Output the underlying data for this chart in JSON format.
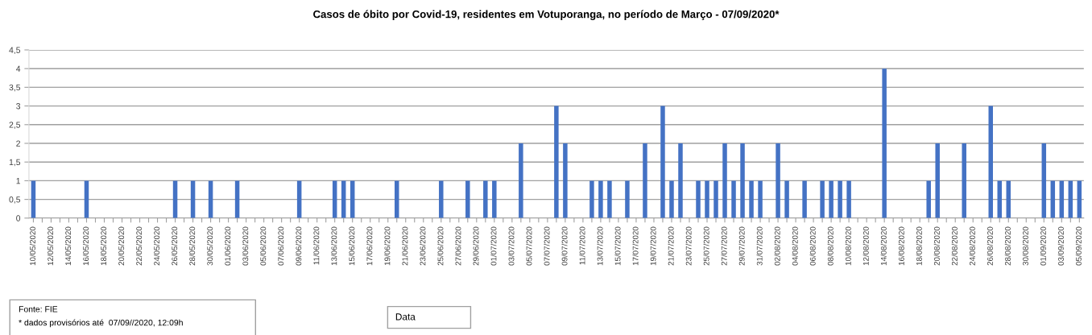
{
  "chart_data": {
    "type": "bar",
    "title": "Casos de óbito por Covid-19, residentes em Votuporanga, no período de Março - 07/09/2020*",
    "annotations": [
      "Fonte: FIE",
      "* dados provisórios até  07/09//2020, 12:09h",
      "Data"
    ],
    "categories": [
      "10/05/2020",
      null,
      "12/05/2020",
      null,
      "14/05/2020",
      null,
      "16/05/2020",
      null,
      "18/05/2020",
      null,
      "20/05/2020",
      null,
      "22/05/2020",
      null,
      "24/05/2020",
      null,
      "26/05/2020",
      null,
      "28/05/2020",
      null,
      "30/05/2020",
      null,
      "01/06/2020",
      null,
      "03/06/2020",
      null,
      "05/06/2020",
      null,
      "07/06/2020",
      null,
      "09/06/2020",
      null,
      "11/06/2020",
      null,
      "13/06/2020",
      null,
      "15/06/2020",
      null,
      "17/06/2020",
      null,
      "19/06/2020",
      null,
      "21/06/2020",
      null,
      "23/06/2020",
      null,
      "25/06/2020",
      null,
      "27/06/2020",
      null,
      "29/06/2020",
      null,
      "01/07/2020",
      null,
      "03/07/2020",
      null,
      "05/07/2020",
      null,
      "07/07/2020",
      null,
      "09/07/2020",
      null,
      "11/07/2020",
      null,
      "13/07/2020",
      null,
      "15/07/2020",
      null,
      "17/07/2020",
      null,
      "19/07/2020",
      null,
      "21/07/2020",
      null,
      "23/07/2020",
      null,
      "25/07/2020",
      null,
      "27/07/2020",
      null,
      "29/07/2020",
      null,
      "31/07/2020",
      null,
      "02/08/2020",
      null,
      "04/08/2020",
      null,
      "06/08/2020",
      null,
      "08/08/2020",
      null,
      "10/08/2020",
      null,
      "12/08/2020",
      null,
      "14/08/2020",
      null,
      "16/08/2020",
      null,
      "18/08/2020",
      null,
      "20/08/2020",
      null,
      "22/08/2020",
      null,
      "24/08/2020",
      null,
      "26/08/2020",
      null,
      "28/08/2020",
      null,
      "30/08/2020",
      null,
      "01/09/2020",
      null,
      "03/09/2020",
      null,
      "05/09/2020"
    ],
    "values": [
      1,
      0,
      0,
      0,
      0,
      0,
      1,
      0,
      0,
      0,
      0,
      0,
      0,
      0,
      0,
      0,
      1,
      0,
      1,
      0,
      1,
      0,
      0,
      1,
      0,
      0,
      0,
      0,
      0,
      0,
      1,
      0,
      0,
      0,
      1,
      1,
      1,
      0,
      0,
      0,
      0,
      1,
      0,
      0,
      0,
      0,
      1,
      0,
      0,
      1,
      0,
      1,
      1,
      0,
      0,
      2,
      0,
      0,
      0,
      3,
      2,
      0,
      0,
      1,
      1,
      1,
      0,
      1,
      0,
      2,
      0,
      3,
      1,
      2,
      0,
      1,
      1,
      1,
      2,
      1,
      2,
      1,
      1,
      0,
      2,
      1,
      0,
      1,
      0,
      1,
      1,
      1,
      1,
      0,
      0,
      0,
      4,
      0,
      0,
      0,
      0,
      1,
      2,
      0,
      0,
      2,
      0,
      0,
      3,
      1,
      1,
      0,
      0,
      0,
      2,
      1,
      1,
      1,
      1
    ],
    "color": "#4472c4",
    "ylim": [
      0,
      4.5
    ],
    "yticks": [
      0,
      {
        "value": 0.5,
        "label": "0,5"
      },
      1,
      {
        "value": 1.5,
        "label": "1,5"
      },
      2,
      {
        "value": 2.5,
        "label": "2,5"
      },
      3,
      {
        "value": 3.5,
        "label": "3,5"
      },
      4,
      {
        "value": 4.5,
        "label": "4,5"
      }
    ],
    "grid": "y"
  }
}
